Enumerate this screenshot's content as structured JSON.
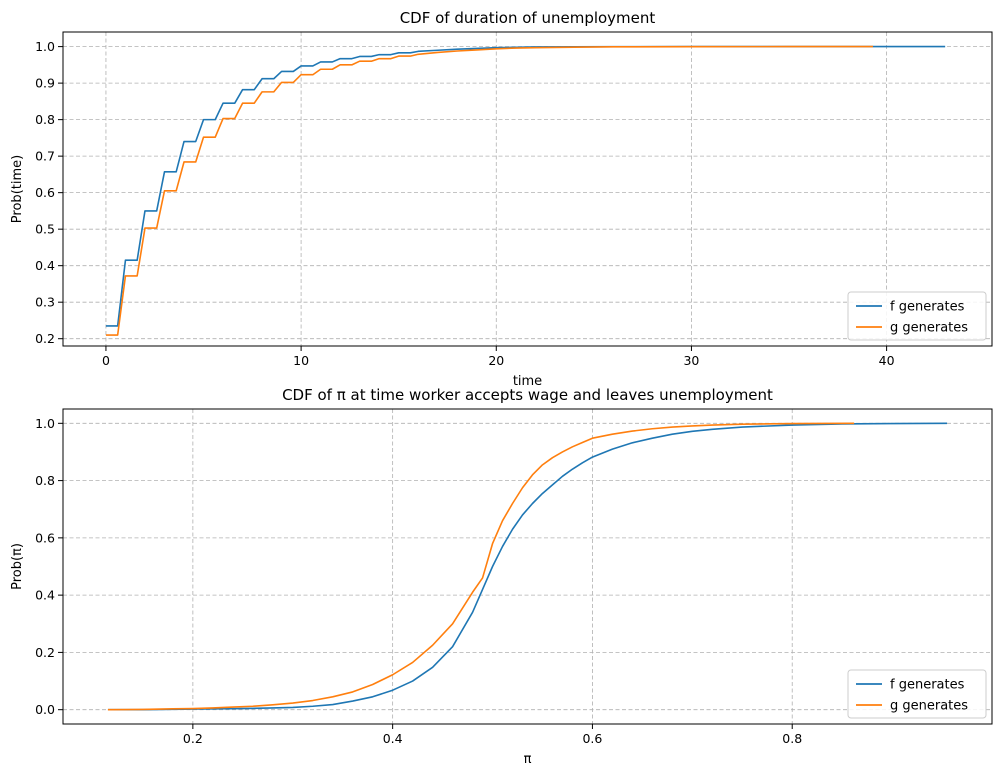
{
  "chart_data": [
    {
      "type": "line",
      "title": "CDF of duration of unemployment",
      "xlabel": "time",
      "ylabel": "Prob(time)",
      "xlim": [
        -2.2,
        45.4
      ],
      "ylim": [
        0.18,
        1.04
      ],
      "xticks": [
        0,
        10,
        20,
        30,
        40
      ],
      "xtick_labels": [
        "0",
        "10",
        "20",
        "30",
        "40"
      ],
      "yticks": [
        0.2,
        0.3,
        0.4,
        0.5,
        0.6,
        0.7,
        0.8,
        0.9,
        1.0
      ],
      "ytick_labels": [
        "0.2",
        "0.3",
        "0.4",
        "0.5",
        "0.6",
        "0.7",
        "0.8",
        "0.9",
        "1.0"
      ],
      "grid": true,
      "legend": "lower-right",
      "series": [
        {
          "name": "f generates",
          "color": "#1f77b4",
          "x": [
            0,
            0.6,
            1,
            1.6,
            2,
            2.6,
            3,
            3.6,
            4,
            4.6,
            5,
            5.6,
            6,
            6.6,
            7,
            7.6,
            8,
            8.6,
            9,
            9.6,
            10,
            10.6,
            11,
            11.6,
            12,
            12.6,
            13,
            13.6,
            14,
            14.6,
            15,
            15.6,
            16,
            17,
            18,
            19,
            20,
            21,
            22,
            24,
            26,
            30,
            35,
            43
          ],
          "y": [
            0.235,
            0.235,
            0.415,
            0.415,
            0.55,
            0.55,
            0.657,
            0.657,
            0.74,
            0.74,
            0.8,
            0.8,
            0.845,
            0.845,
            0.882,
            0.882,
            0.912,
            0.912,
            0.932,
            0.932,
            0.947,
            0.947,
            0.958,
            0.958,
            0.967,
            0.967,
            0.973,
            0.973,
            0.978,
            0.978,
            0.983,
            0.983,
            0.987,
            0.99,
            0.993,
            0.995,
            0.997,
            0.998,
            0.999,
            0.9995,
            0.9998,
            1.0,
            1.0,
            1.0
          ]
        },
        {
          "name": "g generates",
          "color": "#ff7f0e",
          "x": [
            0,
            0.6,
            1,
            1.6,
            2,
            2.6,
            3,
            3.6,
            4,
            4.6,
            5,
            5.6,
            6,
            6.6,
            7,
            7.6,
            8,
            8.6,
            9,
            9.6,
            10,
            10.6,
            11,
            11.6,
            12,
            12.6,
            13,
            13.6,
            14,
            14.6,
            15,
            15.6,
            16,
            17,
            18,
            19,
            20,
            21,
            22,
            24,
            26,
            30,
            35,
            39.3
          ],
          "y": [
            0.21,
            0.21,
            0.372,
            0.372,
            0.503,
            0.503,
            0.605,
            0.605,
            0.684,
            0.684,
            0.752,
            0.752,
            0.803,
            0.803,
            0.845,
            0.845,
            0.876,
            0.876,
            0.902,
            0.902,
            0.923,
            0.923,
            0.938,
            0.938,
            0.95,
            0.95,
            0.96,
            0.96,
            0.967,
            0.967,
            0.974,
            0.974,
            0.979,
            0.984,
            0.988,
            0.991,
            0.994,
            0.996,
            0.997,
            0.9985,
            0.9993,
            0.9998,
            1.0,
            1.0
          ]
        }
      ]
    },
    {
      "type": "line",
      "title": "CDF of π at time worker accepts wage and leaves unemployment",
      "xlabel": "π",
      "ylabel": "Prob(π)",
      "xlim": [
        0.07,
        1.0
      ],
      "ylim": [
        -0.05,
        1.05
      ],
      "xticks": [
        0.2,
        0.4,
        0.6,
        0.8
      ],
      "xtick_labels": [
        "0.2",
        "0.4",
        "0.6",
        "0.8"
      ],
      "yticks": [
        0.0,
        0.2,
        0.4,
        0.6,
        0.8,
        1.0
      ],
      "ytick_labels": [
        "0.0",
        "0.2",
        "0.4",
        "0.6",
        "0.8",
        "1.0"
      ],
      "grid": true,
      "legend": "lower-right",
      "series": [
        {
          "name": "f generates",
          "color": "#1f77b4",
          "x": [
            0.115,
            0.15,
            0.2,
            0.25,
            0.28,
            0.3,
            0.32,
            0.34,
            0.36,
            0.38,
            0.4,
            0.42,
            0.44,
            0.46,
            0.48,
            0.49,
            0.5,
            0.51,
            0.52,
            0.53,
            0.54,
            0.55,
            0.56,
            0.57,
            0.58,
            0.59,
            0.6,
            0.62,
            0.64,
            0.66,
            0.68,
            0.7,
            0.72,
            0.75,
            0.8,
            0.85,
            0.9,
            0.955
          ],
          "y": [
            0.0,
            0.0,
            0.002,
            0.004,
            0.006,
            0.008,
            0.012,
            0.018,
            0.03,
            0.045,
            0.068,
            0.1,
            0.148,
            0.22,
            0.34,
            0.42,
            0.5,
            0.57,
            0.63,
            0.68,
            0.72,
            0.755,
            0.785,
            0.815,
            0.84,
            0.862,
            0.882,
            0.91,
            0.932,
            0.948,
            0.962,
            0.972,
            0.979,
            0.987,
            0.994,
            0.998,
            0.999,
            1.0
          ]
        },
        {
          "name": "g generates",
          "color": "#ff7f0e",
          "x": [
            0.115,
            0.15,
            0.18,
            0.2,
            0.22,
            0.24,
            0.26,
            0.28,
            0.3,
            0.32,
            0.34,
            0.36,
            0.38,
            0.4,
            0.42,
            0.44,
            0.46,
            0.47,
            0.48,
            0.49,
            0.5,
            0.51,
            0.52,
            0.53,
            0.54,
            0.55,
            0.56,
            0.57,
            0.58,
            0.59,
            0.6,
            0.62,
            0.64,
            0.66,
            0.68,
            0.7,
            0.72,
            0.75,
            0.8,
            0.862
          ],
          "y": [
            0.0,
            0.001,
            0.003,
            0.004,
            0.006,
            0.009,
            0.012,
            0.017,
            0.023,
            0.032,
            0.045,
            0.062,
            0.088,
            0.122,
            0.165,
            0.225,
            0.3,
            0.355,
            0.41,
            0.46,
            0.58,
            0.66,
            0.72,
            0.775,
            0.82,
            0.855,
            0.88,
            0.9,
            0.918,
            0.933,
            0.948,
            0.962,
            0.973,
            0.981,
            0.987,
            0.991,
            0.994,
            0.997,
            0.999,
            1.0
          ]
        }
      ]
    }
  ]
}
